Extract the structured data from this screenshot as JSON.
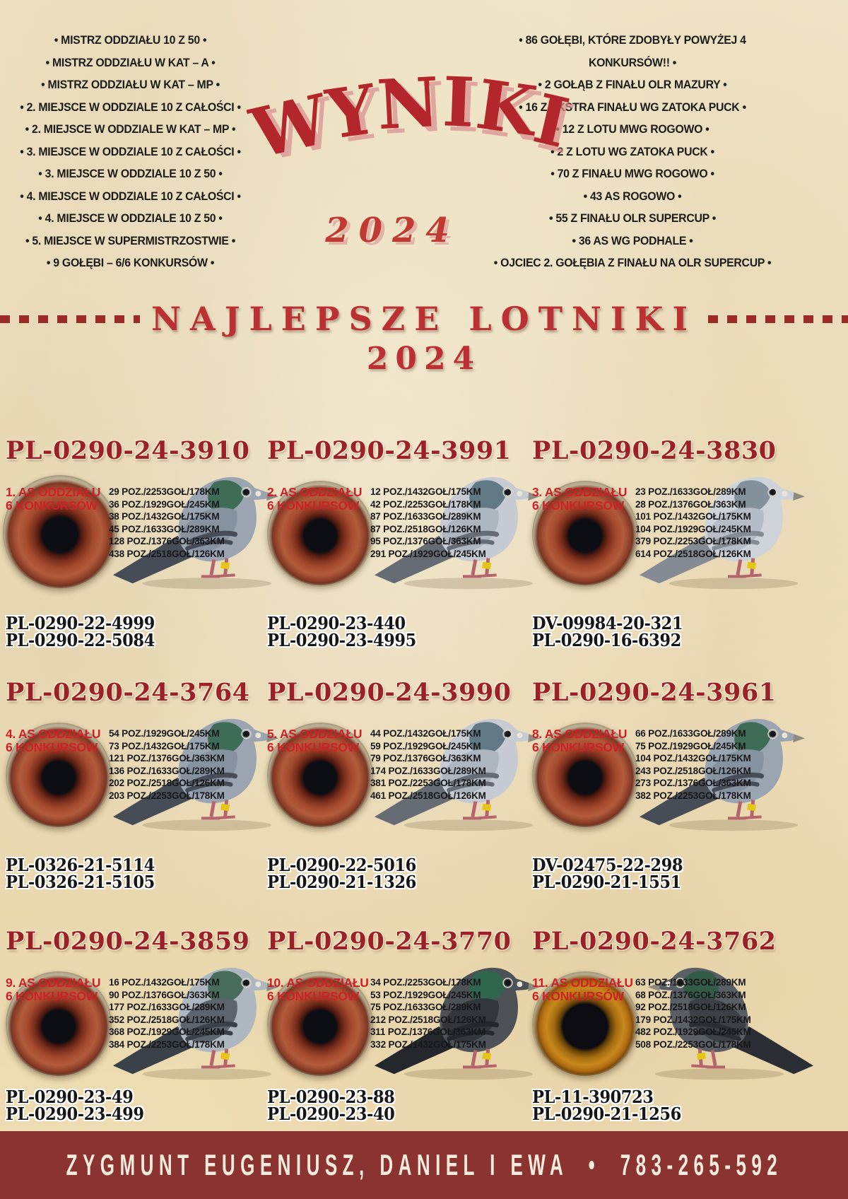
{
  "header": {
    "title": "WYNIKI",
    "year": "2024",
    "left_achievements": [
      "MISTRZ ODDZIAŁU 10 Z 50",
      "MISTRZ ODDZIAŁU W KAT – A",
      "MISTRZ ODDZIAŁU W KAT – MP",
      "2. MIEJSCE W ODDZIALE 10 Z CAŁOŚCI",
      "2. MIEJSCE W ODDZIALE W KAT – MP",
      "3. MIEJSCE W ODDZIALE 10 Z CAŁOŚCI",
      "3. MIEJSCE W ODDZIALE 10 Z 50",
      "4. MIEJSCE W ODDZIALE 10 Z CAŁOŚCI",
      "4. MIEJSCE W ODDZIALE 10 Z 50",
      "5. MIEJSCE W SUPERMISTRZOSTWIE",
      "9 GOŁĘBI – 6/6 KONKURSÓW"
    ],
    "right_achievements": [
      "86 GOŁĘBI, KTÓRE ZDOBYŁY POWYŻEJ 4 KONKURSÓW!!",
      "2 GOŁĄB Z FINAŁU OLR MAZURY",
      "16 Z EKSTRA FINAŁU WG ZATOKA PUCK",
      "12 Z LOTU MWG ROGOWO",
      "2 Z LOTU WG ZATOKA PUCK",
      "70 Z FINAŁU MWG ROGOWO",
      "43 AS ROGOWO",
      "55 Z FINAŁU OLR SUPERCUP",
      "36 AS WG PODHALE",
      "OJCIEC 2. GOŁĘBIA Z FINAŁU NA OLR SUPERCUP"
    ]
  },
  "section": {
    "title": "NAJLEPSZE LOTNIKI",
    "year": "2024"
  },
  "pigeons": [
    {
      "ring": "PL-0290-24-3910",
      "rank": "1. AS ODDZIAŁU",
      "rank2": "6 KONKURSÓW",
      "results": [
        "29 POZ./2253GOŁ/178KM",
        "36 POZ./1929GOŁ/245KM",
        "38 POZ./1432GOŁ/175KM",
        "45 POZ./1633GOŁ/289KM",
        "128 POZ./1376GOŁ/363KM",
        "438 POZ./2518GOŁ/126KM"
      ],
      "parents": [
        "PL-0290-22-4999",
        "PL-0290-22-5084"
      ],
      "plumage": "blue",
      "facing": "right",
      "eye_color": "eye-red"
    },
    {
      "ring": "PL-0290-24-3991",
      "rank": "2. AS ODDZIAŁU",
      "rank2": "6 KONKURSÓW",
      "results": [
        "12 POZ./1432GOŁ/175KM",
        "42 POZ./2253GOŁ/178KM",
        "87 POZ./1633GOŁ/289KM",
        "87 POZ./2518GOŁ/126KM",
        "95 POZ./1376GOŁ/363KM",
        "291 POZ./1929GOŁ/245KM"
      ],
      "parents": [
        "PL-0290-23-440",
        "PL-0290-23-4995"
      ],
      "plumage": "light",
      "facing": "right",
      "eye_color": "eye-red"
    },
    {
      "ring": "PL-0290-24-3830",
      "rank": "3. AS ODDZIAŁU",
      "rank2": "6 KONKURSÓW",
      "results": [
        "23 POZ./1633GOŁ/289KM",
        "28 POZ./1376GOŁ/363KM",
        "101 POZ./1432GOŁ/175KM",
        "104 POZ./1929GOŁ/245KM",
        "379 POZ./2253GOŁ/178KM",
        "614 POZ./2518GOŁ/126KM"
      ],
      "parents": [
        "DV-09984-20-321",
        "PL-0290-16-6392"
      ],
      "plumage": "mealy",
      "facing": "right",
      "eye_color": "eye-red"
    },
    {
      "ring": "PL-0290-24-3764",
      "rank": "4. AS ODDZIAŁU",
      "rank2": "6 KONKURSÓW",
      "results": [
        "54 POZ./1929GOŁ/245KM",
        "73 POZ./1432GOŁ/175KM",
        "121 POZ./1376GOŁ/363KM",
        "136 POZ./1633GOŁ/289KM",
        "202 POZ./2518GOŁ/126KM",
        "203 POZ./2253GOŁ/178KM"
      ],
      "parents": [
        "PL-0326-21-5114",
        "PL-0326-21-5105"
      ],
      "plumage": "blue",
      "facing": "right",
      "eye_color": "eye-red"
    },
    {
      "ring": "PL-0290-24-3990",
      "rank": "5. AS ODDZIAŁU",
      "rank2": "6 KONKURSÓW",
      "results": [
        "44 POZ./1432GOŁ/175KM",
        "59 POZ./1929GOŁ/245KM",
        "79 POZ./1376GOŁ/363KM",
        "174 POZ./1633GOŁ/289KM",
        "381 POZ./2253GOŁ/178KM",
        "461 POZ./2518GOŁ/126KM"
      ],
      "parents": [
        "PL-0290-22-5016",
        "PL-0290-21-1326"
      ],
      "plumage": "light",
      "facing": "right",
      "eye_color": "eye-red"
    },
    {
      "ring": "PL-0290-24-3961",
      "rank": "8. AS ODDZIAŁU",
      "rank2": "6 KONKURSÓW",
      "results": [
        "66 POZ./1633GOŁ/289KM",
        "75 POZ./1929GOŁ/245KM",
        "104 POZ./1432GOŁ/175KM",
        "243 POZ./2518GOŁ/126KM",
        "273 POZ./1376GOŁ/363KM",
        "382 POZ./2253GOŁ/178KM"
      ],
      "parents": [
        "DV-02475-22-298",
        "PL-0290-21-1551"
      ],
      "plumage": "blue",
      "facing": "right",
      "eye_color": "eye-red"
    },
    {
      "ring": "PL-0290-24-3859",
      "rank": "9. AS ODDZIAŁU",
      "rank2": "6 KONKURSÓW",
      "results": [
        "16 POZ./1432GOŁ/175KM",
        "90 POZ./1376GOŁ/363KM",
        "177 POZ./1633GOŁ/289KM",
        "352 POZ./2518GOŁ/126KM",
        "368 POZ./1929GOŁ/245KM",
        "384 POZ./2253GOŁ/178KM"
      ],
      "parents": [
        "PL-0290-23-49",
        "PL-0290-23-499"
      ],
      "plumage": "checker",
      "facing": "right",
      "eye_color": "eye-red"
    },
    {
      "ring": "PL-0290-24-3770",
      "rank": "10. AS ODDZIAŁU",
      "rank2": "6 KONKURSÓW",
      "results": [
        "34 POZ./2253GOŁ/178KM",
        "53 POZ./1929GOŁ/245KM",
        "75 POZ./1633GOŁ/289KM",
        "212 POZ./2518GOŁ/126KM",
        "311 POZ./1376GOŁ/363KM",
        "332 POZ./1432GOŁ/175KM"
      ],
      "parents": [
        "PL-0290-23-88",
        "PL-0290-23-40"
      ],
      "plumage": "darkgreen",
      "facing": "right",
      "eye_color": "eye-red"
    },
    {
      "ring": "PL-0290-24-3762",
      "rank": "11. AS ODDZIAŁU",
      "rank2": "6 KONKURSÓW",
      "results": [
        "63 POZ./1633GOŁ/289KM",
        "68 POZ./1376GOŁ/363KM",
        "92 POZ./2518GOŁ/126KM",
        "179 POZ./1432GOŁ/175KM",
        "482 POZ./1929GOŁ/245KM",
        "508 POZ./2253GOŁ/178KM"
      ],
      "parents": [
        "PL-11-390723",
        "PL-0290-21-1256"
      ],
      "plumage": "dark",
      "facing": "left",
      "eye_color": "eye-orange"
    }
  ],
  "footer": {
    "names": "ZYGMUNT EUGENIUSZ, DANIEL I EWA",
    "bullet": "•",
    "phone": "783-265-592"
  },
  "colors": {
    "accent_red": "#b3262b",
    "title_red": "#9c2127",
    "rank_red": "#ce2127",
    "banner_red": "#8a3330",
    "paper": "#efe2c2"
  }
}
